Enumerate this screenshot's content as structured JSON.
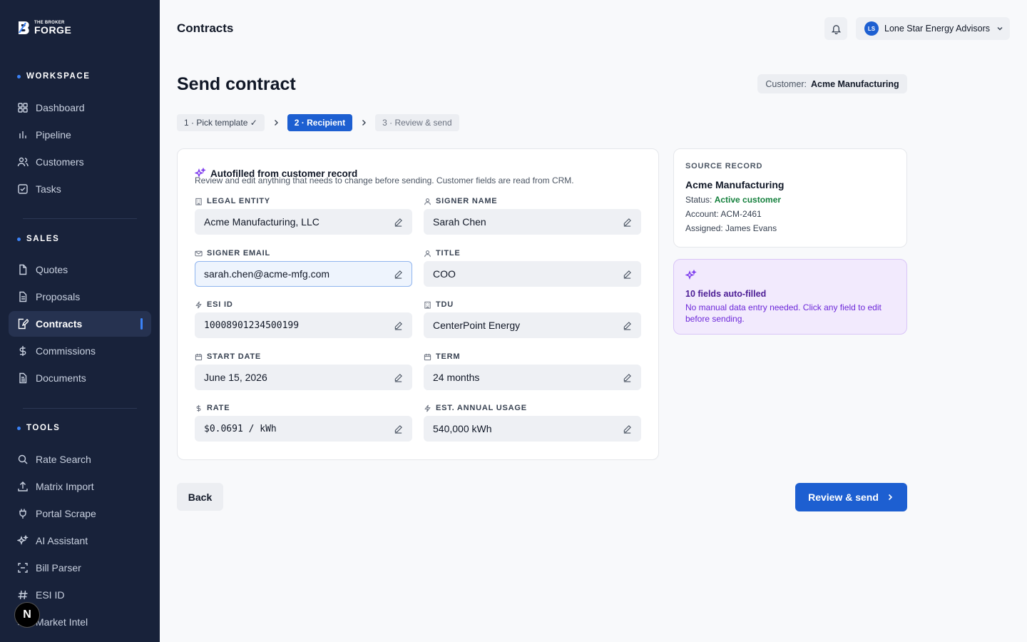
{
  "brand": {
    "small": "THE BROKER",
    "big": "FORGE"
  },
  "sidebar": {
    "sections": [
      {
        "label": "WORKSPACE",
        "items": [
          {
            "label": "Dashboard",
            "icon": "grid-icon"
          },
          {
            "label": "Pipeline",
            "icon": "bar-chart-icon"
          },
          {
            "label": "Customers",
            "icon": "users-icon"
          },
          {
            "label": "Tasks",
            "icon": "checkbox-icon"
          }
        ]
      },
      {
        "label": "SALES",
        "items": [
          {
            "label": "Quotes",
            "icon": "file-icon"
          },
          {
            "label": "Proposals",
            "icon": "file-text-icon"
          },
          {
            "label": "Contracts",
            "icon": "file-signature-icon",
            "active": true
          },
          {
            "label": "Commissions",
            "icon": "dollar-icon"
          },
          {
            "label": "Documents",
            "icon": "document-icon"
          }
        ]
      },
      {
        "label": "TOOLS",
        "items": [
          {
            "label": "Rate Search",
            "icon": "search-icon"
          },
          {
            "label": "Matrix Import",
            "icon": "upload-icon"
          },
          {
            "label": "Portal Scrape",
            "icon": "plug-icon"
          },
          {
            "label": "AI Assistant",
            "icon": "sparkles-icon"
          },
          {
            "label": "Bill Parser",
            "icon": "scan-icon"
          },
          {
            "label": "ESI ID",
            "icon": "hash-icon"
          },
          {
            "label": "Market Intel",
            "icon": "trend-icon"
          }
        ]
      }
    ]
  },
  "header": {
    "title": "Contracts",
    "account": {
      "initials": "LS",
      "name": "Lone Star Energy Advisors"
    }
  },
  "page": {
    "title": "Send contract",
    "customer_label": "Customer:",
    "customer_name": "Acme Manufacturing"
  },
  "steps": [
    {
      "label": "1 · Pick template ✓",
      "state": "done"
    },
    {
      "label": "2 · Recipient",
      "state": "current"
    },
    {
      "label": "3 · Review & send",
      "state": "upcoming"
    }
  ],
  "form": {
    "heading": "Autofilled from customer record",
    "subheading": "Review and edit anything that needs to change before sending. Customer fields are read from CRM.",
    "fields": [
      {
        "label": "LEGAL ENTITY",
        "value": "Acme Manufacturing, LLC",
        "icon": "building-icon"
      },
      {
        "label": "SIGNER NAME",
        "value": "Sarah Chen",
        "icon": "user-icon"
      },
      {
        "label": "SIGNER EMAIL",
        "value": "sarah.chen@acme-mfg.com",
        "icon": "mail-icon"
      },
      {
        "label": "TITLE",
        "value": "COO",
        "icon": "user-icon"
      },
      {
        "label": "ESI ID",
        "value": "10008901234500199",
        "icon": "bolt-icon"
      },
      {
        "label": "TDU",
        "value": "CenterPoint Energy",
        "icon": "building-icon"
      },
      {
        "label": "START DATE",
        "value": "June 15, 2026",
        "icon": "calendar-icon"
      },
      {
        "label": "TERM",
        "value": "24 months",
        "icon": "calendar-icon"
      },
      {
        "label": "RATE",
        "value": "$0.0691 / kWh",
        "icon": "dollar-icon"
      },
      {
        "label": "EST. ANNUAL USAGE",
        "value": "540,000 kWh",
        "icon": "bolt-icon"
      }
    ]
  },
  "source": {
    "label": "SOURCE RECORD",
    "name": "Acme Manufacturing",
    "status_label": "Status:",
    "status_value": "Active customer",
    "account": "Account: ACM-2461",
    "assigned": "Assigned: James Evans"
  },
  "autofill": {
    "title": "10 fields auto-filled",
    "description": "No manual data entry needed. Click any field to edit before sending."
  },
  "actions": {
    "back": "Back",
    "send": "Review & send"
  },
  "colors": {
    "sidebar_bg": "#18223a",
    "accent": "#1d5fd1",
    "success": "#15803d",
    "purple": "#6d28d9"
  }
}
